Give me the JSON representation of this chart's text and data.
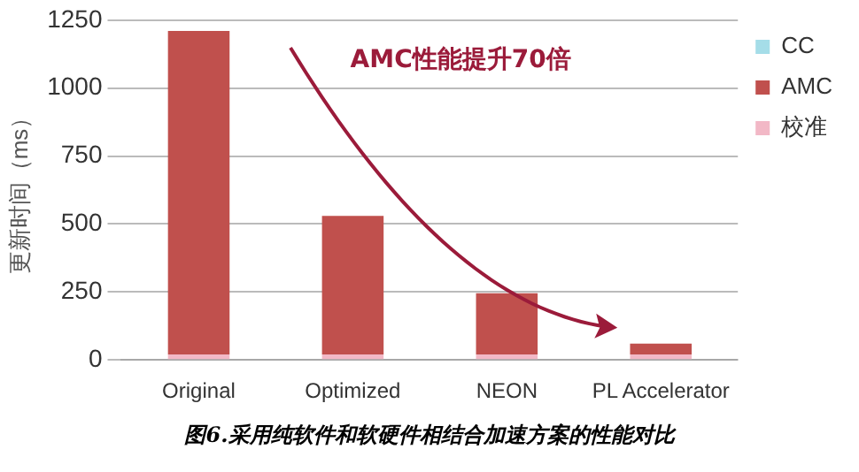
{
  "chart_data": {
    "type": "bar",
    "stacked": true,
    "categories": [
      "Original",
      "Optimized",
      "NEON",
      "PL Accelerator"
    ],
    "series": [
      {
        "name": "校准",
        "color": "#f2b8c6",
        "values": [
          20,
          20,
          20,
          20
        ]
      },
      {
        "name": "AMC",
        "color": "#c0504d",
        "values": [
          1190,
          510,
          225,
          40
        ]
      },
      {
        "name": "CC",
        "color": "#a5dde8",
        "values": [
          0,
          0,
          0,
          0
        ]
      }
    ],
    "ylabel": "更新时间（ms）",
    "ylim": [
      0,
      1250
    ],
    "yticks": [
      0,
      250,
      500,
      750,
      1000,
      1250
    ],
    "grid": "y",
    "legend": "top right",
    "annotations": [
      "AMC性能提升70倍",
      "图6.采用纯软件和软硬件相结合加速方案的性能对比"
    ]
  }
}
